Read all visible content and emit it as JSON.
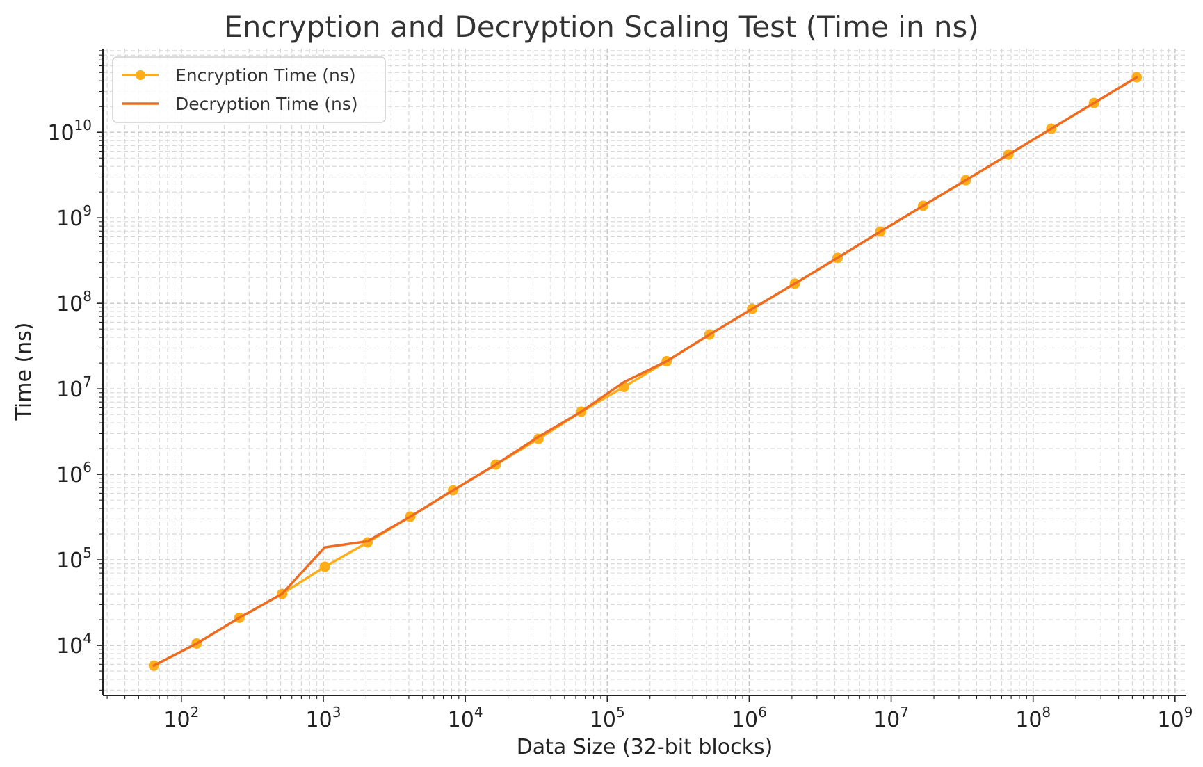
{
  "chart_data": {
    "type": "line",
    "title": "Encryption and Decryption Scaling Test (Time in ns)",
    "xlabel": "Data Size (32-bit blocks)",
    "ylabel": "Time (ns)",
    "xscale": "log",
    "yscale": "log",
    "xlim": [
      28,
      1200000000
    ],
    "ylim": [
      2600,
      95000000000
    ],
    "grid": true,
    "legend": "top-left",
    "x_ticks": [
      {
        "base": "10",
        "exp": "2",
        "value": 100
      },
      {
        "base": "10",
        "exp": "3",
        "value": 1000
      },
      {
        "base": "10",
        "exp": "4",
        "value": 10000
      },
      {
        "base": "10",
        "exp": "5",
        "value": 100000
      },
      {
        "base": "10",
        "exp": "6",
        "value": 1000000
      },
      {
        "base": "10",
        "exp": "7",
        "value": 10000000
      },
      {
        "base": "10",
        "exp": "8",
        "value": 100000000
      },
      {
        "base": "10",
        "exp": "9",
        "value": 1000000000
      }
    ],
    "y_ticks": [
      {
        "base": "10",
        "exp": "4",
        "value": 10000
      },
      {
        "base": "10",
        "exp": "5",
        "value": 100000
      },
      {
        "base": "10",
        "exp": "6",
        "value": 1000000
      },
      {
        "base": "10",
        "exp": "7",
        "value": 10000000
      },
      {
        "base": "10",
        "exp": "8",
        "value": 100000000
      },
      {
        "base": "10",
        "exp": "9",
        "value": 1000000000
      },
      {
        "base": "10",
        "exp": "10",
        "value": 10000000000
      }
    ],
    "x": [
      64,
      128,
      256,
      512,
      1024,
      2048,
      4096,
      8192,
      16384,
      32768,
      65536,
      131072,
      262144,
      524288,
      1048576,
      2097152,
      4194304,
      8388608,
      16777216,
      33554432,
      67108864,
      134217728,
      268435456,
      536870912
    ],
    "series": [
      {
        "name": "Encryption Time (ns)",
        "color": "#ffae19",
        "marker": "circle",
        "values": [
          5800,
          10500,
          21000,
          40000,
          83000,
          160000,
          320000,
          650000,
          1300000,
          2600000,
          5400000,
          10500000,
          21000000,
          43000000,
          86000000,
          170000000,
          340000000,
          690000000,
          1380000000,
          2750000000,
          5500000000,
          11000000000,
          22000000000,
          44000000000
        ]
      },
      {
        "name": "Decryption Time (ns)",
        "color": "#ef6b22",
        "marker": "none",
        "values": [
          5800,
          10500,
          21000,
          40000,
          140000,
          165000,
          320000,
          650000,
          1300000,
          2750000,
          5400000,
          12000000,
          21000000,
          43000000,
          86000000,
          170000000,
          340000000,
          690000000,
          1380000000,
          2750000000,
          5500000000,
          11000000000,
          22000000000,
          44000000000
        ]
      }
    ]
  }
}
